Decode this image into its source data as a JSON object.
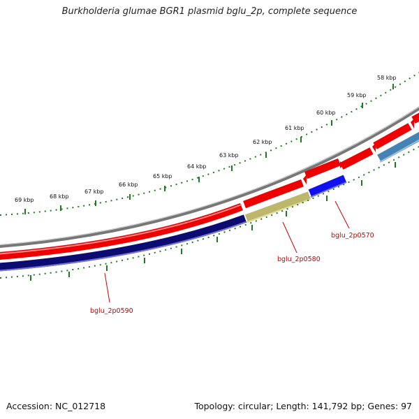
{
  "title": "Burkholderia glumae BGR1 plasmid bglu_2p, complete sequence",
  "footer": {
    "accession": "Accession: NC_012718",
    "summary": "Topology: circular; Length: 141,792 bp; Genes: 97"
  },
  "tick_labels": [
    "58 kbp",
    "59 kbp",
    "60 kbp",
    "61 kbp",
    "62 kbp",
    "63 kbp",
    "64 kbp",
    "65 kbp",
    "66 kbp",
    "67 kbp",
    "68 kbp",
    "69 kbp"
  ],
  "gene_labels": [
    "bglu_2p0570",
    "bglu_2p0580",
    "bglu_2p0590"
  ],
  "colors": {
    "forward_cds": "#ee0000",
    "reverse_cds_navy": "#0b0b72",
    "reverse_cds_blue": "#1111ee",
    "reverse_cds_khaki": "#bdb76b",
    "reverse_cds_steel": "#4682b4",
    "backbone": "#808080",
    "ticks": "#1e7a1e",
    "gene_label": "#cc0000"
  }
}
